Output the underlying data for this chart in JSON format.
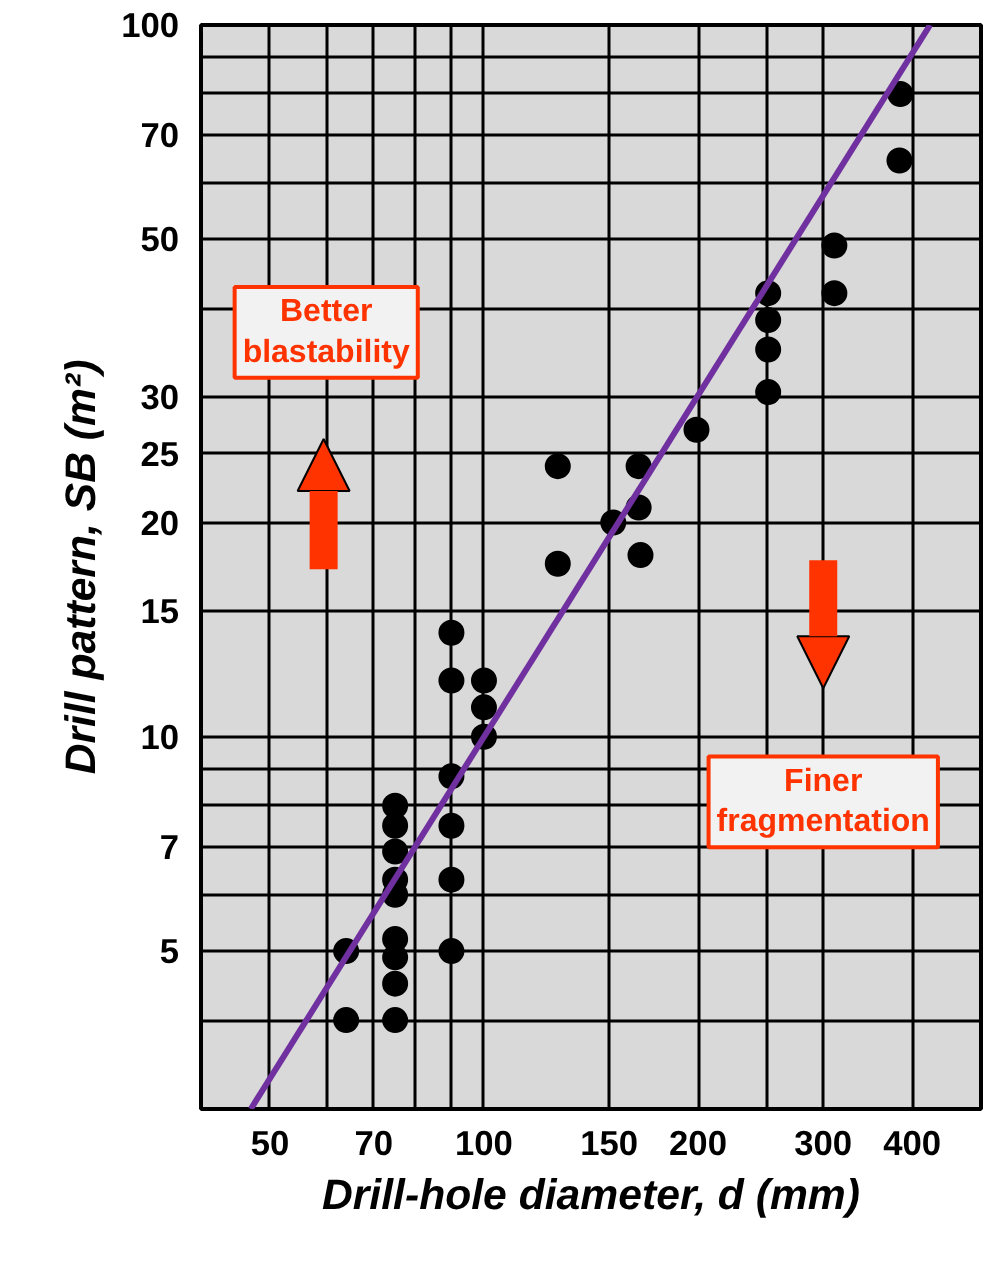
{
  "chart_data": {
    "type": "scatter",
    "xlabel": "Drill-hole diameter, d (mm)",
    "ylabel": "Drill pattern, SB (m²)",
    "log": "xy",
    "grid": true,
    "xlim": [
      40,
      500
    ],
    "ylim": [
      3,
      100
    ],
    "xticks": [
      {
        "value": 40,
        "label": null
      },
      50,
      {
        "value": 60,
        "label": null
      },
      70,
      {
        "value": 80,
        "label": null
      },
      {
        "value": 90,
        "label": null
      },
      100,
      150,
      200,
      {
        "value": 250,
        "label": null
      },
      300,
      400,
      {
        "value": 500,
        "label": null
      }
    ],
    "yticks": [
      {
        "value": 4,
        "label": null
      },
      5,
      {
        "value": 6,
        "label": null
      },
      7,
      {
        "value": 8,
        "label": null
      },
      {
        "value": 9,
        "label": null
      },
      10,
      15,
      20,
      25,
      30,
      {
        "value": 40,
        "label": null
      },
      50,
      {
        "value": 60,
        "label": null
      },
      70,
      {
        "value": 80,
        "label": null
      },
      {
        "value": 90,
        "label": null
      },
      100
    ],
    "annotations": [
      "Better blastability",
      "Finer fragmentation"
    ],
    "series": [
      {
        "marker": "circle",
        "color": "#000000",
        "x": [
          385,
          384,
          311,
          311,
          251,
          251,
          251,
          251,
          199,
          127,
          165,
          152,
          165,
          166,
          127,
          90,
          90,
          100,
          100,
          100,
          90,
          90,
          90,
          90,
          75,
          75,
          75,
          75,
          75,
          75,
          75,
          75,
          75,
          64,
          64
        ],
        "values": [
          80,
          64.5,
          49,
          42,
          42,
          38.5,
          35,
          30.5,
          27,
          24,
          24,
          20,
          21,
          18,
          17.5,
          14,
          12,
          12,
          11,
          10,
          8.8,
          7.5,
          6.3,
          5,
          8,
          7.5,
          6.9,
          6.3,
          6,
          5.2,
          4.9,
          4.5,
          4,
          5,
          4
        ]
      },
      {
        "type": "line",
        "marker": "none",
        "color": "#7030a0",
        "x": [
          47,
          424
        ],
        "values": [
          3,
          100
        ]
      }
    ]
  }
}
